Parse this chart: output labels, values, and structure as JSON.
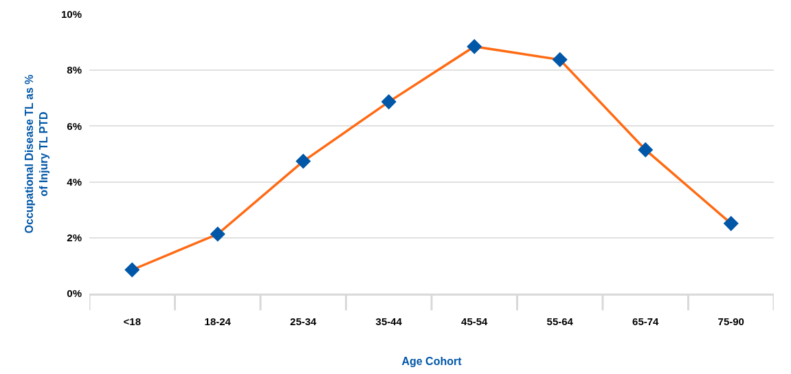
{
  "chart_data": {
    "type": "line",
    "xlabel": "Age Cohort",
    "ylabel": "Occupational Disease TL as %\nof Injury TL PTD",
    "categories": [
      "<18",
      "18-24",
      "25-34",
      "35-44",
      "45-54",
      "55-64",
      "65-74",
      "75-90"
    ],
    "series": [
      {
        "color": "#ff6a13",
        "colors": [
          "#0057a8",
          "#0057a8",
          "#0057a8",
          "#0057a8",
          "#0057a8",
          "#0057a8",
          "#0057a8",
          "#0057a8"
        ],
        "values": [
          0.85,
          2.13,
          4.74,
          6.87,
          8.85,
          8.38,
          5.15,
          2.51
        ]
      }
    ],
    "ylim": [
      0,
      10
    ],
    "yticks": [
      {
        "value": 0,
        "label": "0%"
      },
      {
        "value": 2,
        "label": "2%"
      },
      {
        "value": 4,
        "label": "4%"
      },
      {
        "value": 6,
        "label": "6%"
      },
      {
        "value": 8,
        "label": "8%"
      },
      {
        "value": 10,
        "label": "10%"
      }
    ],
    "grid": "y",
    "marker": "diamond",
    "line_style": "solid",
    "legend": false
  }
}
